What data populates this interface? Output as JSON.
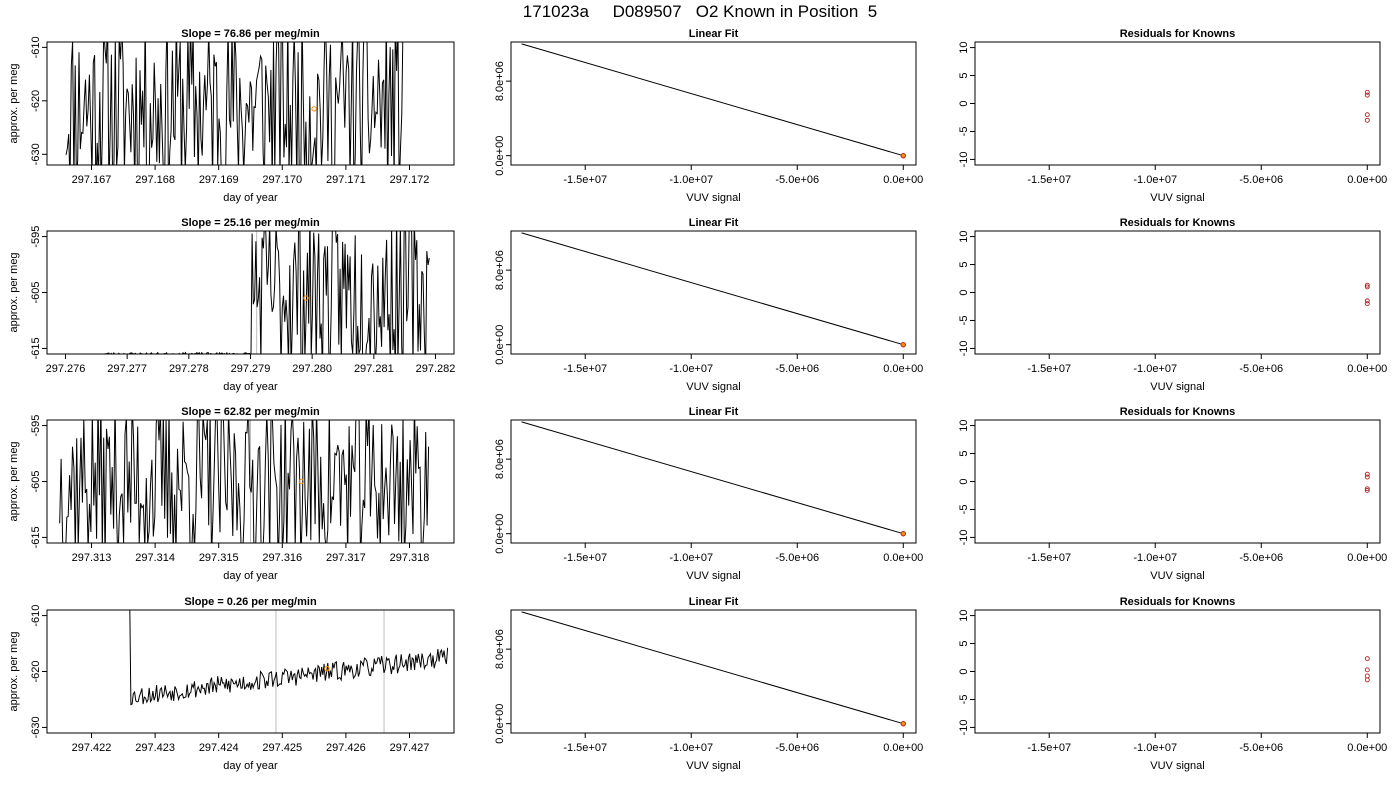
{
  "page": {
    "title": "171023a     D089507   O2 Known in Position  5"
  },
  "colors": {
    "series_line": "#000000",
    "marker": "#ff8c00",
    "known_point": "#b22222",
    "gridline": "#bebebe"
  },
  "chart_data": [
    {
      "row": 1,
      "panel": "time-series",
      "type": "line",
      "title": "Slope =  76.86  per meg/min",
      "xlabel": "day of year",
      "ylabel": "approx. per meg",
      "xlim": [
        297.1663,
        297.1727
      ],
      "ylim": [
        -632,
        -609
      ],
      "xticks": [
        297.167,
        297.168,
        297.169,
        297.17,
        297.171,
        297.172
      ],
      "xtick_labels": [
        "297.167",
        "297.168",
        "297.169",
        "297.170",
        "297.171",
        "297.172"
      ],
      "yticks": [
        -630,
        -620,
        -610
      ],
      "ytick_labels": [
        "-630",
        "-620",
        "-610"
      ],
      "vlines": [],
      "marker_point": {
        "x": 297.1705,
        "y": -621.5
      },
      "series": {
        "seed": 11,
        "start": 297.1666,
        "end": 297.1719,
        "center": -621,
        "noise": 35,
        "quiet_until": 297.1666,
        "quiet_level": -614
      }
    },
    {
      "row": 1,
      "panel": "linear-fit",
      "type": "line",
      "title": "Linear Fit",
      "xlabel": "VUV signal",
      "ylabel": "",
      "xlim": [
        -18500000.0,
        600000.0
      ],
      "ylim": [
        -1000000.0,
        12200000.0
      ],
      "xticks": [
        -15000000.0,
        -10000000.0,
        -5000000.0,
        0.0
      ],
      "xtick_labels": [
        "-1.5e+07",
        "-1.0e+07",
        "-5.0e+06",
        "0.0e+00"
      ],
      "yticks": [
        0.0,
        8000000.0
      ],
      "ytick_labels": [
        "0.0e+00",
        "8.0e+06"
      ],
      "fit_line": {
        "x": [
          -18000000.0,
          0.0
        ],
        "y": [
          12000000.0,
          0.0
        ]
      },
      "known_points": [
        {
          "x": 0.0,
          "y": 0.0
        },
        {
          "x": 0.0,
          "y": 0.0
        },
        {
          "x": 0.0,
          "y": 0.0
        }
      ]
    },
    {
      "row": 1,
      "panel": "residuals",
      "type": "scatter",
      "title": "Residuals for Knowns",
      "xlabel": "VUV signal",
      "ylabel": "",
      "xlim": [
        -18500000.0,
        600000.0
      ],
      "ylim": [
        -11,
        11
      ],
      "xticks": [
        -15000000.0,
        -10000000.0,
        -5000000.0,
        0.0
      ],
      "xtick_labels": [
        "-1.5e+07",
        "-1.0e+07",
        "-5.0e+06",
        "0.0e+00"
      ],
      "yticks": [
        -10,
        -5,
        0,
        5,
        10
      ],
      "ytick_labels": [
        "-10",
        "-5",
        "0",
        "5",
        "10"
      ],
      "points": [
        {
          "x": 0.0,
          "y": 2.0
        },
        {
          "x": 0.0,
          "y": 1.5
        },
        {
          "x": 0.0,
          "y": -2.0
        },
        {
          "x": 0.0,
          "y": -3.0
        }
      ]
    },
    {
      "row": 2,
      "panel": "time-series",
      "type": "line",
      "title": "Slope =  25.16  per meg/min",
      "xlabel": "day of year",
      "ylabel": "approx. per meg",
      "xlim": [
        297.2757,
        297.2823
      ],
      "ylim": [
        -616,
        -594
      ],
      "xticks": [
        297.276,
        297.277,
        297.278,
        297.279,
        297.28,
        297.281,
        297.282
      ],
      "xtick_labels": [
        "297.276",
        "297.277",
        "297.278",
        "297.279",
        "297.280",
        "297.281",
        "297.282"
      ],
      "yticks": [
        -615,
        -605,
        -595
      ],
      "ytick_labels": [
        "-615",
        "-605",
        "-595"
      ],
      "vlines": [
        297.2791
      ],
      "marker_point": {
        "x": 297.2799,
        "y": -606.0
      },
      "series": {
        "seed": 23,
        "start": 297.2766,
        "end": 297.2819,
        "center": -605,
        "noise": 30,
        "quiet_until": 297.279,
        "quiet_level": -616
      }
    },
    {
      "row": 2,
      "panel": "linear-fit",
      "type": "line",
      "title": "Linear Fit",
      "xlabel": "VUV signal",
      "ylabel": "",
      "xlim": [
        -18500000.0,
        600000.0
      ],
      "ylim": [
        -1000000.0,
        12200000.0
      ],
      "xticks": [
        -15000000.0,
        -10000000.0,
        -5000000.0,
        0.0
      ],
      "xtick_labels": [
        "-1.5e+07",
        "-1.0e+07",
        "-5.0e+06",
        "0.0e+00"
      ],
      "yticks": [
        0.0,
        8000000.0
      ],
      "ytick_labels": [
        "0.0e+00",
        "8.0e+06"
      ],
      "fit_line": {
        "x": [
          -18000000.0,
          0.0
        ],
        "y": [
          12000000.0,
          0.0
        ]
      },
      "known_points": [
        {
          "x": 0.0,
          "y": 0.0
        },
        {
          "x": 0.0,
          "y": 0.0
        },
        {
          "x": 0.0,
          "y": 0.0
        }
      ]
    },
    {
      "row": 2,
      "panel": "residuals",
      "type": "scatter",
      "title": "Residuals for Knowns",
      "xlabel": "VUV signal",
      "ylabel": "",
      "xlim": [
        -18500000.0,
        600000.0
      ],
      "ylim": [
        -11,
        11
      ],
      "xticks": [
        -15000000.0,
        -10000000.0,
        -5000000.0,
        0.0
      ],
      "xtick_labels": [
        "-1.5e+07",
        "-1.0e+07",
        "-5.0e+06",
        "0.0e+00"
      ],
      "yticks": [
        -10,
        -5,
        0,
        5,
        10
      ],
      "ytick_labels": [
        "-10",
        "-5",
        "0",
        "5",
        "10"
      ],
      "points": [
        {
          "x": 0.0,
          "y": 1.3
        },
        {
          "x": 0.0,
          "y": 1.0
        },
        {
          "x": 0.0,
          "y": -1.5
        },
        {
          "x": 0.0,
          "y": -2.0
        }
      ]
    },
    {
      "row": 3,
      "panel": "time-series",
      "type": "line",
      "title": "Slope =  62.82  per meg/min",
      "xlabel": "day of year",
      "ylabel": "approx. per meg",
      "xlim": [
        297.3123,
        297.3187
      ],
      "ylim": [
        -616,
        -594
      ],
      "xticks": [
        297.313,
        297.314,
        297.315,
        297.316,
        297.317,
        297.318
      ],
      "xtick_labels": [
        "297.313",
        "297.314",
        "297.315",
        "297.316",
        "297.317",
        "297.318"
      ],
      "yticks": [
        -615,
        -605,
        -595
      ],
      "ytick_labels": [
        "-615",
        "-605",
        "-595"
      ],
      "vlines": [
        297.3155
      ],
      "marker_point": {
        "x": 297.3163,
        "y": -605.0
      },
      "series": {
        "seed": 37,
        "start": 297.3125,
        "end": 297.3183,
        "center": -605,
        "noise": 30,
        "quiet_until": 297.3125,
        "quiet_level": -610
      }
    },
    {
      "row": 3,
      "panel": "linear-fit",
      "type": "line",
      "title": "Linear Fit",
      "xlabel": "VUV signal",
      "ylabel": "",
      "xlim": [
        -18500000.0,
        600000.0
      ],
      "ylim": [
        -1000000.0,
        12200000.0
      ],
      "xticks": [
        -15000000.0,
        -10000000.0,
        -5000000.0,
        0.0
      ],
      "xtick_labels": [
        "-1.5e+07",
        "-1.0e+07",
        "-5.0e+06",
        "0.0e+00"
      ],
      "yticks": [
        0.0,
        8000000.0
      ],
      "ytick_labels": [
        "0.0e+00",
        "8.0e+06"
      ],
      "fit_line": {
        "x": [
          -18000000.0,
          0.0
        ],
        "y": [
          12000000.0,
          0.0
        ]
      },
      "known_points": [
        {
          "x": 0.0,
          "y": 0.0
        },
        {
          "x": 0.0,
          "y": 0.0
        },
        {
          "x": 0.0,
          "y": 0.0
        }
      ]
    },
    {
      "row": 3,
      "panel": "residuals",
      "type": "scatter",
      "title": "Residuals for Knowns",
      "xlabel": "VUV signal",
      "ylabel": "",
      "xlim": [
        -18500000.0,
        600000.0
      ],
      "ylim": [
        -11,
        11
      ],
      "xticks": [
        -15000000.0,
        -10000000.0,
        -5000000.0,
        0.0
      ],
      "xtick_labels": [
        "-1.5e+07",
        "-1.0e+07",
        "-5.0e+06",
        "0.0e+00"
      ],
      "yticks": [
        -10,
        -5,
        0,
        5,
        10
      ],
      "ytick_labels": [
        "-10",
        "-5",
        "0",
        "5",
        "10"
      ],
      "points": [
        {
          "x": 0.0,
          "y": 1.3
        },
        {
          "x": 0.0,
          "y": 0.8
        },
        {
          "x": 0.0,
          "y": -1.3
        },
        {
          "x": 0.0,
          "y": -1.6
        }
      ]
    },
    {
      "row": 4,
      "panel": "time-series",
      "type": "line",
      "title": "Slope =  0.26  per meg/min",
      "xlabel": "day of year",
      "ylabel": "approx. per meg",
      "xlim": [
        297.4213,
        297.4277
      ],
      "ylim": [
        -631,
        -609
      ],
      "xticks": [
        297.422,
        297.423,
        297.424,
        297.425,
        297.426,
        297.427
      ],
      "xtick_labels": [
        "297.422",
        "297.423",
        "297.424",
        "297.425",
        "297.426",
        "297.427"
      ],
      "yticks": [
        -630,
        -620,
        -610
      ],
      "ytick_labels": [
        "-630",
        "-620",
        "-610"
      ],
      "vlines": [
        297.4249,
        297.4266
      ],
      "marker_point": {
        "x": 297.4257,
        "y": -619.5
      },
      "series": {
        "seed": 53,
        "start": 297.4226,
        "end": 297.4276,
        "center": -621,
        "noise": 3.5,
        "trend": 7,
        "quiet_until": 297.4226,
        "quiet_level": -621
      }
    },
    {
      "row": 4,
      "panel": "linear-fit",
      "type": "line",
      "title": "Linear Fit",
      "xlabel": "VUV signal",
      "ylabel": "",
      "xlim": [
        -18500000.0,
        600000.0
      ],
      "ylim": [
        -1000000.0,
        12200000.0
      ],
      "xticks": [
        -15000000.0,
        -10000000.0,
        -5000000.0,
        0.0
      ],
      "xtick_labels": [
        "-1.5e+07",
        "-1.0e+07",
        "-5.0e+06",
        "0.0e+00"
      ],
      "yticks": [
        0.0,
        8000000.0
      ],
      "ytick_labels": [
        "0.0e+00",
        "8.0e+06"
      ],
      "fit_line": {
        "x": [
          -18000000.0,
          0.0
        ],
        "y": [
          12000000.0,
          0.0
        ]
      },
      "known_points": [
        {
          "x": 0.0,
          "y": 0.0
        },
        {
          "x": 0.0,
          "y": 0.0
        },
        {
          "x": 0.0,
          "y": 0.0
        }
      ]
    },
    {
      "row": 4,
      "panel": "residuals",
      "type": "scatter",
      "title": "Residuals for Knowns",
      "xlabel": "VUV signal",
      "ylabel": "",
      "xlim": [
        -18500000.0,
        600000.0
      ],
      "ylim": [
        -11,
        11
      ],
      "xticks": [
        -15000000.0,
        -10000000.0,
        -5000000.0,
        0.0
      ],
      "xtick_labels": [
        "-1.5e+07",
        "-1.0e+07",
        "-5.0e+06",
        "0.0e+00"
      ],
      "yticks": [
        -10,
        -5,
        0,
        5,
        10
      ],
      "ytick_labels": [
        "-10",
        "-5",
        "0",
        "5",
        "10"
      ],
      "points": [
        {
          "x": 0.0,
          "y": 2.3
        },
        {
          "x": 0.0,
          "y": 0.3
        },
        {
          "x": 0.0,
          "y": -0.8
        },
        {
          "x": 0.0,
          "y": -1.5
        }
      ]
    }
  ]
}
